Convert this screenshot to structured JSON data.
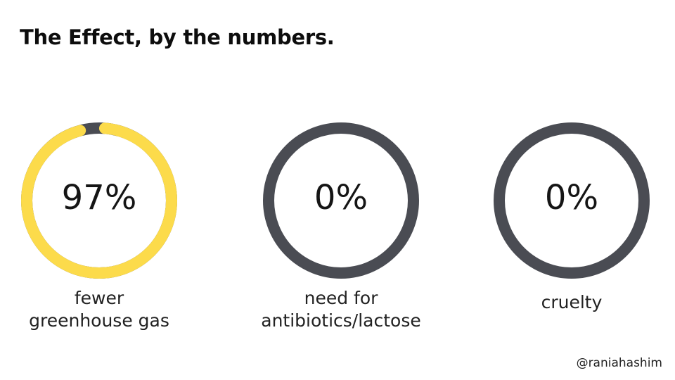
{
  "title": "The Effect, by the numbers.",
  "colors": {
    "accent": "#FCDB4B",
    "track": "#4A4C53",
    "text": "#111111"
  },
  "stats": [
    {
      "value_text": "97%",
      "fill_fraction": 0.97,
      "label_lines": [
        "fewer",
        "greenhouse gas"
      ]
    },
    {
      "value_text": "0%",
      "fill_fraction": 0,
      "label_lines": [
        "need for",
        "antibiotics/lactose"
      ]
    },
    {
      "value_text": "0%",
      "fill_fraction": 0,
      "label_lines": [
        "cruelty"
      ]
    }
  ],
  "handle": "@raniahashim"
}
